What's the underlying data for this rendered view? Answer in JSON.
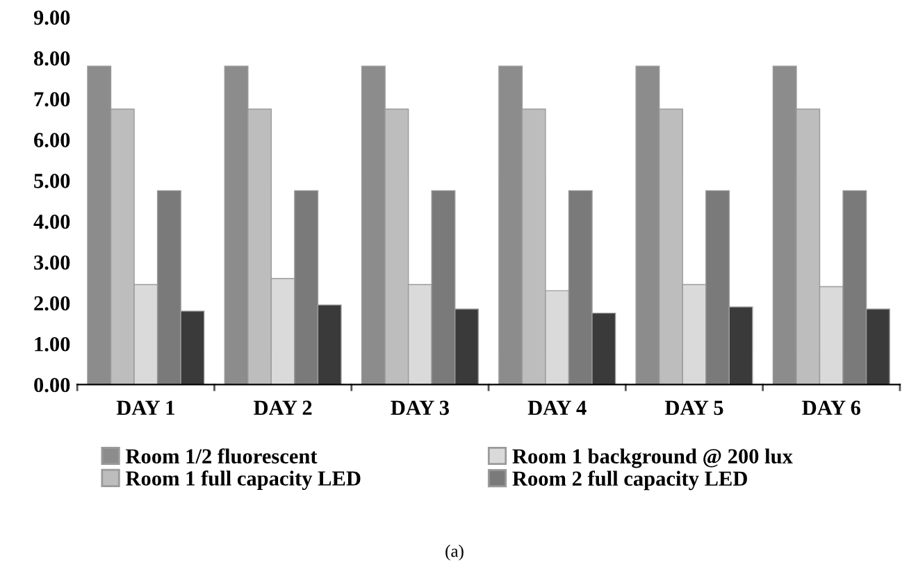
{
  "chart_data": {
    "type": "bar",
    "categories": [
      "DAY 1",
      "DAY 2",
      "DAY 3",
      "DAY 4",
      "DAY 5",
      "DAY 6"
    ],
    "series": [
      {
        "name": "Room 1/2 fluorescent",
        "color": "#8c8c8c",
        "values": [
          7.8,
          7.8,
          7.8,
          7.8,
          7.8,
          7.8
        ]
      },
      {
        "name": "Room 1 full capacity LED",
        "color": "#bdbdbd",
        "values": [
          6.75,
          6.75,
          6.75,
          6.75,
          6.75,
          6.75
        ]
      },
      {
        "name": "Room 1 background @ 200 lux",
        "color": "#dadada",
        "values": [
          2.45,
          2.6,
          2.45,
          2.3,
          2.45,
          2.4
        ]
      },
      {
        "name": "Room 2 full capacity LED",
        "color": "#7a7a7a",
        "values": [
          4.75,
          4.75,
          4.75,
          4.75,
          4.75,
          4.75
        ]
      },
      {
        "color": "#3a3a3a",
        "values": [
          1.8,
          1.95,
          1.85,
          1.75,
          1.9,
          1.85
        ]
      }
    ],
    "ylim": [
      0,
      9
    ],
    "yticks": [
      {
        "value": 0,
        "label": "0.00"
      },
      {
        "value": 1,
        "label": "1.00"
      },
      {
        "value": 2,
        "label": "2.00"
      },
      {
        "value": 3,
        "label": "3.00"
      },
      {
        "value": 4,
        "label": "4.00"
      },
      {
        "value": 5,
        "label": "5.00"
      },
      {
        "value": 6,
        "label": "6.00"
      },
      {
        "value": 7,
        "label": "7.00"
      },
      {
        "value": 8,
        "label": "8.00"
      },
      {
        "value": 9,
        "label": "9.00"
      }
    ],
    "legend": "bottom",
    "annotations": [
      "(a)"
    ]
  }
}
